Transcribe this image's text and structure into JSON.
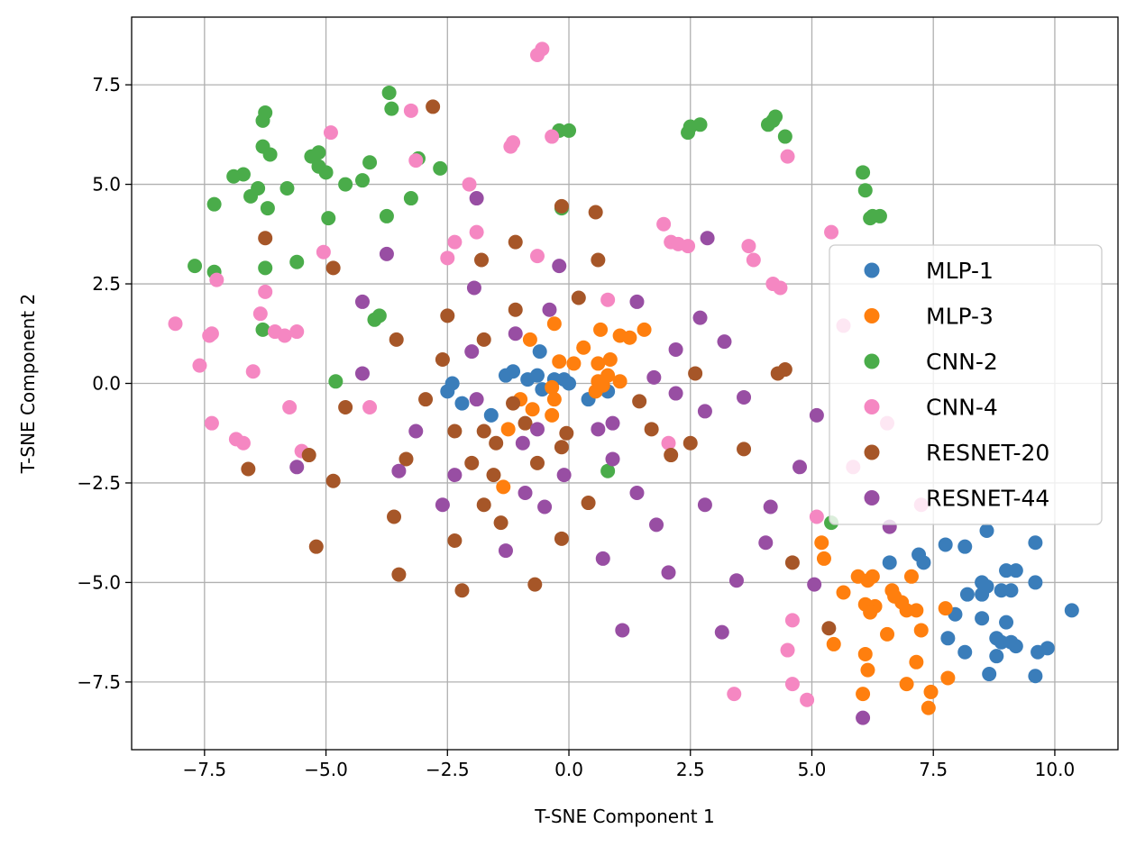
{
  "chart_data": {
    "type": "scatter",
    "title": "",
    "xlabel": "T-SNE Component 1",
    "ylabel": "T-SNE Component 2",
    "xlim": [
      -9.0,
      11.3
    ],
    "ylim": [
      -9.2,
      9.2
    ],
    "xticks": [
      -7.5,
      -5.0,
      -2.5,
      0.0,
      2.5,
      5.0,
      7.5,
      10.0
    ],
    "xtick_labels": [
      "−7.5",
      "−5.0",
      "−2.5",
      "0.0",
      "2.5",
      "5.0",
      "7.5",
      "10.0"
    ],
    "yticks": [
      -7.5,
      -5.0,
      -2.5,
      0.0,
      2.5,
      5.0,
      7.5
    ],
    "ytick_labels": [
      "−7.5",
      "−5.0",
      "−2.5",
      "0.0",
      "2.5",
      "5.0",
      "7.5"
    ],
    "grid": true,
    "legend_position": "center-right",
    "series": [
      {
        "name": "MLP-1",
        "color": "#3a7dba",
        "points": [
          [
            -2.5,
            -0.2
          ],
          [
            -2.4,
            0.0
          ],
          [
            -2.2,
            -0.5
          ],
          [
            -1.6,
            -0.8
          ],
          [
            -1.3,
            0.2
          ],
          [
            -1.15,
            0.3
          ],
          [
            -0.85,
            0.1
          ],
          [
            -0.65,
            0.2
          ],
          [
            -0.55,
            -0.15
          ],
          [
            -0.6,
            0.8
          ],
          [
            -0.3,
            0.1
          ],
          [
            -0.1,
            0.1
          ],
          [
            0.0,
            0.0
          ],
          [
            0.4,
            -0.4
          ],
          [
            0.8,
            -0.2
          ],
          [
            6.6,
            -4.5
          ],
          [
            7.2,
            -4.3
          ],
          [
            7.3,
            -4.5
          ],
          [
            7.75,
            -4.05
          ],
          [
            8.15,
            -4.1
          ],
          [
            8.6,
            -3.7
          ],
          [
            9.6,
            -4.0
          ],
          [
            8.2,
            -5.3
          ],
          [
            8.5,
            -5.0
          ],
          [
            8.5,
            -5.3
          ],
          [
            8.9,
            -5.2
          ],
          [
            9.0,
            -4.7
          ],
          [
            9.1,
            -5.2
          ],
          [
            9.2,
            -4.7
          ],
          [
            9.6,
            -5.0
          ],
          [
            7.95,
            -5.8
          ],
          [
            8.5,
            -5.9
          ],
          [
            9.0,
            -6.0
          ],
          [
            7.8,
            -6.4
          ],
          [
            8.15,
            -6.75
          ],
          [
            8.8,
            -6.4
          ],
          [
            8.9,
            -6.5
          ],
          [
            9.1,
            -6.5
          ],
          [
            9.2,
            -6.6
          ],
          [
            8.8,
            -6.85
          ],
          [
            9.65,
            -6.75
          ],
          [
            9.85,
            -6.65
          ],
          [
            10.35,
            -5.7
          ],
          [
            8.65,
            -7.3
          ],
          [
            9.6,
            -7.35
          ],
          [
            8.6,
            -5.1
          ]
        ]
      },
      {
        "name": "MLP-3",
        "color": "#ff7f0e",
        "points": [
          [
            -0.8,
            1.1
          ],
          [
            -0.3,
            1.5
          ],
          [
            0.3,
            0.9
          ],
          [
            0.65,
            1.35
          ],
          [
            0.6,
            0.5
          ],
          [
            0.85,
            0.6
          ],
          [
            1.05,
            1.2
          ],
          [
            1.25,
            1.15
          ],
          [
            1.55,
            1.35
          ],
          [
            -1.0,
            -0.4
          ],
          [
            -0.35,
            -0.1
          ],
          [
            -0.3,
            -0.4
          ],
          [
            -0.35,
            -0.8
          ],
          [
            -0.2,
            0.55
          ],
          [
            0.1,
            0.5
          ],
          [
            0.6,
            0.05
          ],
          [
            0.8,
            0.2
          ],
          [
            1.05,
            0.05
          ],
          [
            0.55,
            -0.2
          ],
          [
            -1.25,
            -1.15
          ],
          [
            -1.35,
            -2.6
          ],
          [
            -0.75,
            -0.65
          ],
          [
            5.2,
            -4.0
          ],
          [
            5.25,
            -4.4
          ],
          [
            5.45,
            -6.55
          ],
          [
            5.65,
            -5.25
          ],
          [
            5.95,
            -4.85
          ],
          [
            6.1,
            -5.55
          ],
          [
            6.15,
            -4.95
          ],
          [
            6.25,
            -4.85
          ],
          [
            6.3,
            -5.6
          ],
          [
            6.2,
            -5.75
          ],
          [
            6.1,
            -6.8
          ],
          [
            6.55,
            -6.3
          ],
          [
            6.65,
            -5.2
          ],
          [
            6.85,
            -5.5
          ],
          [
            6.95,
            -5.7
          ],
          [
            7.05,
            -4.85
          ],
          [
            7.15,
            -5.7
          ],
          [
            7.25,
            -6.2
          ],
          [
            7.15,
            -7.0
          ],
          [
            6.95,
            -7.55
          ],
          [
            7.45,
            -7.75
          ],
          [
            7.4,
            -8.15
          ],
          [
            7.8,
            -7.4
          ],
          [
            7.75,
            -5.65
          ],
          [
            6.15,
            -7.2
          ],
          [
            6.05,
            -7.8
          ],
          [
            6.7,
            -5.35
          ],
          [
            0.7,
            -0.05
          ]
        ]
      },
      {
        "name": "CNN-2",
        "color": "#4aac4a",
        "points": [
          [
            -7.7,
            2.95
          ],
          [
            -7.3,
            4.5
          ],
          [
            -7.3,
            2.8
          ],
          [
            -6.9,
            5.2
          ],
          [
            -6.7,
            5.25
          ],
          [
            -6.55,
            4.7
          ],
          [
            -6.4,
            4.9
          ],
          [
            -6.3,
            6.6
          ],
          [
            -6.25,
            6.8
          ],
          [
            -6.3,
            5.95
          ],
          [
            -6.15,
            5.75
          ],
          [
            -6.2,
            4.4
          ],
          [
            -6.25,
            2.9
          ],
          [
            -6.3,
            1.35
          ],
          [
            -5.8,
            4.9
          ],
          [
            -5.6,
            3.05
          ],
          [
            -5.3,
            5.7
          ],
          [
            -5.15,
            5.8
          ],
          [
            -5.15,
            5.45
          ],
          [
            -5.0,
            5.3
          ],
          [
            -4.95,
            4.15
          ],
          [
            -4.8,
            0.05
          ],
          [
            -4.6,
            5.0
          ],
          [
            -4.25,
            5.1
          ],
          [
            -4.1,
            5.55
          ],
          [
            -4.0,
            1.6
          ],
          [
            -3.9,
            1.7
          ],
          [
            -3.75,
            4.2
          ],
          [
            -3.7,
            7.3
          ],
          [
            -3.65,
            6.9
          ],
          [
            -3.25,
            4.65
          ],
          [
            -3.1,
            5.65
          ],
          [
            -2.65,
            5.4
          ],
          [
            -0.15,
            4.4
          ],
          [
            -0.2,
            6.35
          ],
          [
            0.0,
            6.35
          ],
          [
            2.45,
            6.3
          ],
          [
            2.5,
            6.45
          ],
          [
            2.7,
            6.5
          ],
          [
            4.1,
            6.5
          ],
          [
            4.2,
            6.6
          ],
          [
            4.25,
            6.7
          ],
          [
            4.45,
            6.2
          ],
          [
            6.05,
            5.3
          ],
          [
            6.1,
            4.85
          ],
          [
            6.2,
            4.15
          ],
          [
            6.25,
            4.2
          ],
          [
            6.4,
            4.2
          ],
          [
            5.4,
            -3.5
          ],
          [
            0.8,
            -2.2
          ]
        ]
      },
      {
        "name": "CNN-4",
        "color": "#f587c2",
        "points": [
          [
            -8.1,
            1.5
          ],
          [
            -7.6,
            0.45
          ],
          [
            -7.4,
            1.2
          ],
          [
            -7.35,
            1.25
          ],
          [
            -7.25,
            2.6
          ],
          [
            -7.35,
            -1.0
          ],
          [
            -6.85,
            -1.4
          ],
          [
            -6.7,
            -1.5
          ],
          [
            -6.5,
            0.3
          ],
          [
            -6.35,
            1.75
          ],
          [
            -6.25,
            2.3
          ],
          [
            -6.05,
            1.3
          ],
          [
            -5.85,
            1.2
          ],
          [
            -5.75,
            -0.6
          ],
          [
            -5.6,
            1.3
          ],
          [
            -5.5,
            -1.7
          ],
          [
            -5.05,
            3.3
          ],
          [
            -4.9,
            6.3
          ],
          [
            -4.1,
            -0.6
          ],
          [
            -3.25,
            6.85
          ],
          [
            -3.15,
            5.6
          ],
          [
            -2.5,
            3.15
          ],
          [
            -2.35,
            3.55
          ],
          [
            -2.05,
            5.0
          ],
          [
            -1.9,
            3.8
          ],
          [
            -1.2,
            5.95
          ],
          [
            -1.15,
            6.05
          ],
          [
            -0.65,
            3.2
          ],
          [
            -0.35,
            6.2
          ],
          [
            -0.65,
            8.25
          ],
          [
            -0.55,
            8.4
          ],
          [
            0.8,
            2.1
          ],
          [
            1.95,
            4.0
          ],
          [
            2.1,
            3.55
          ],
          [
            2.25,
            3.5
          ],
          [
            2.45,
            3.45
          ],
          [
            3.7,
            3.45
          ],
          [
            3.8,
            3.1
          ],
          [
            4.2,
            2.5
          ],
          [
            4.35,
            2.4
          ],
          [
            4.5,
            5.7
          ],
          [
            5.4,
            3.8
          ],
          [
            5.65,
            1.45
          ],
          [
            2.05,
            -1.5
          ],
          [
            5.1,
            -3.35
          ],
          [
            6.55,
            -1.0
          ],
          [
            5.85,
            -2.1
          ],
          [
            7.25,
            -3.05
          ],
          [
            4.6,
            -5.95
          ],
          [
            4.5,
            -6.7
          ],
          [
            4.6,
            -7.55
          ],
          [
            4.9,
            -7.95
          ],
          [
            3.4,
            -7.8
          ]
        ]
      },
      {
        "name": "RESNET-20",
        "color": "#a65628",
        "points": [
          [
            -6.6,
            -2.15
          ],
          [
            -6.25,
            3.65
          ],
          [
            -5.35,
            -1.8
          ],
          [
            -5.2,
            -4.1
          ],
          [
            -4.85,
            2.9
          ],
          [
            -4.85,
            -2.45
          ],
          [
            -4.6,
            -0.6
          ],
          [
            -3.6,
            -3.35
          ],
          [
            -3.55,
            1.1
          ],
          [
            -3.5,
            -4.8
          ],
          [
            -3.35,
            -1.9
          ],
          [
            -2.95,
            -0.4
          ],
          [
            -2.8,
            6.95
          ],
          [
            -2.6,
            0.6
          ],
          [
            -2.5,
            1.7
          ],
          [
            -2.35,
            -1.2
          ],
          [
            -2.35,
            -3.95
          ],
          [
            -2.2,
            -5.2
          ],
          [
            -2.0,
            -2.0
          ],
          [
            -1.8,
            3.1
          ],
          [
            -1.75,
            1.1
          ],
          [
            -1.75,
            -1.2
          ],
          [
            -1.75,
            -3.05
          ],
          [
            -1.55,
            -2.3
          ],
          [
            -1.5,
            -1.5
          ],
          [
            -1.4,
            -3.5
          ],
          [
            -1.1,
            3.55
          ],
          [
            -1.1,
            1.85
          ],
          [
            -1.15,
            -0.5
          ],
          [
            -0.9,
            -1.0
          ],
          [
            -0.65,
            -2.0
          ],
          [
            -0.7,
            -5.05
          ],
          [
            -0.15,
            4.45
          ],
          [
            -0.15,
            -1.6
          ],
          [
            -0.05,
            -1.25
          ],
          [
            -0.15,
            -3.9
          ],
          [
            0.2,
            2.15
          ],
          [
            0.4,
            -3.0
          ],
          [
            0.55,
            4.3
          ],
          [
            0.6,
            3.1
          ],
          [
            1.45,
            -0.45
          ],
          [
            1.7,
            -1.15
          ],
          [
            2.1,
            -1.8
          ],
          [
            2.5,
            -1.5
          ],
          [
            2.6,
            0.25
          ],
          [
            3.6,
            -1.65
          ],
          [
            4.3,
            0.25
          ],
          [
            4.45,
            0.35
          ],
          [
            4.6,
            -4.5
          ],
          [
            5.35,
            -6.15
          ]
        ]
      },
      {
        "name": "RESNET-44",
        "color": "#984ea3",
        "points": [
          [
            -5.6,
            -2.1
          ],
          [
            -4.25,
            2.05
          ],
          [
            -4.25,
            0.25
          ],
          [
            -3.75,
            3.25
          ],
          [
            -3.5,
            -2.2
          ],
          [
            -3.15,
            -1.2
          ],
          [
            -2.6,
            -3.05
          ],
          [
            -2.35,
            -2.3
          ],
          [
            -2.0,
            0.8
          ],
          [
            -1.95,
            2.4
          ],
          [
            -1.9,
            -0.4
          ],
          [
            -1.9,
            4.65
          ],
          [
            -1.3,
            -4.2
          ],
          [
            -1.1,
            1.25
          ],
          [
            -0.95,
            -1.5
          ],
          [
            -0.9,
            -2.75
          ],
          [
            -0.65,
            -1.15
          ],
          [
            -0.5,
            -3.1
          ],
          [
            -0.4,
            1.85
          ],
          [
            -0.2,
            2.95
          ],
          [
            -0.1,
            -2.3
          ],
          [
            0.6,
            -1.15
          ],
          [
            0.7,
            -4.4
          ],
          [
            0.9,
            -1.0
          ],
          [
            0.9,
            -1.9
          ],
          [
            1.1,
            -6.2
          ],
          [
            1.4,
            2.05
          ],
          [
            1.4,
            -2.75
          ],
          [
            1.75,
            0.15
          ],
          [
            1.8,
            -3.55
          ],
          [
            2.05,
            -4.75
          ],
          [
            2.2,
            0.85
          ],
          [
            2.2,
            -0.25
          ],
          [
            2.7,
            1.65
          ],
          [
            2.8,
            -0.7
          ],
          [
            2.8,
            -3.05
          ],
          [
            2.85,
            3.65
          ],
          [
            3.15,
            -6.25
          ],
          [
            3.2,
            1.05
          ],
          [
            3.45,
            -4.95
          ],
          [
            3.6,
            -0.35
          ],
          [
            4.05,
            -4.0
          ],
          [
            4.15,
            -3.1
          ],
          [
            4.75,
            -2.1
          ],
          [
            5.1,
            -0.8
          ],
          [
            5.05,
            -5.05
          ],
          [
            6.05,
            -8.4
          ],
          [
            6.6,
            -3.6
          ]
        ]
      }
    ]
  }
}
